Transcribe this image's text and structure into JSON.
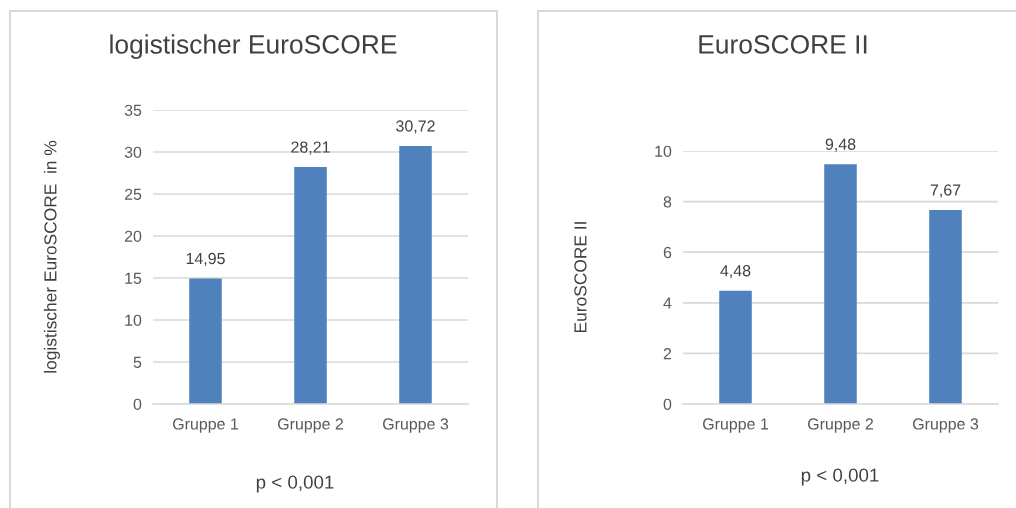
{
  "chart_data": [
    {
      "type": "bar",
      "title": "logistischer EuroSCORE",
      "ylabel": "logistischer EuroSCORE  in %",
      "xlabel": "p < 0,001",
      "categories": [
        "Gruppe 1",
        "Gruppe 2",
        "Gruppe 3"
      ],
      "values": [
        14.95,
        28.21,
        30.72
      ],
      "value_labels": [
        "14,95",
        "28,21",
        "30,72"
      ],
      "colors": [
        "#4f81bd",
        "#4f81bd",
        "#4f81bd"
      ],
      "ylim": [
        0,
        35
      ],
      "yticks": [
        0,
        5,
        10,
        15,
        20,
        25,
        30,
        35
      ],
      "grid": "y"
    },
    {
      "type": "bar",
      "title": "EuroSCORE II",
      "ylabel": "EuroSCORE II",
      "xlabel": "p < 0,001",
      "categories": [
        "Gruppe 1",
        "Gruppe 2",
        "Gruppe 3"
      ],
      "values": [
        4.48,
        9.48,
        7.67
      ],
      "value_labels": [
        "4,48",
        "9,48",
        "7,67"
      ],
      "colors": [
        "#4f81bd",
        "#4f81bd",
        "#4f81bd"
      ],
      "ylim": [
        0,
        10
      ],
      "yticks": [
        0,
        2,
        4,
        6,
        8,
        10
      ],
      "grid": "y"
    }
  ]
}
